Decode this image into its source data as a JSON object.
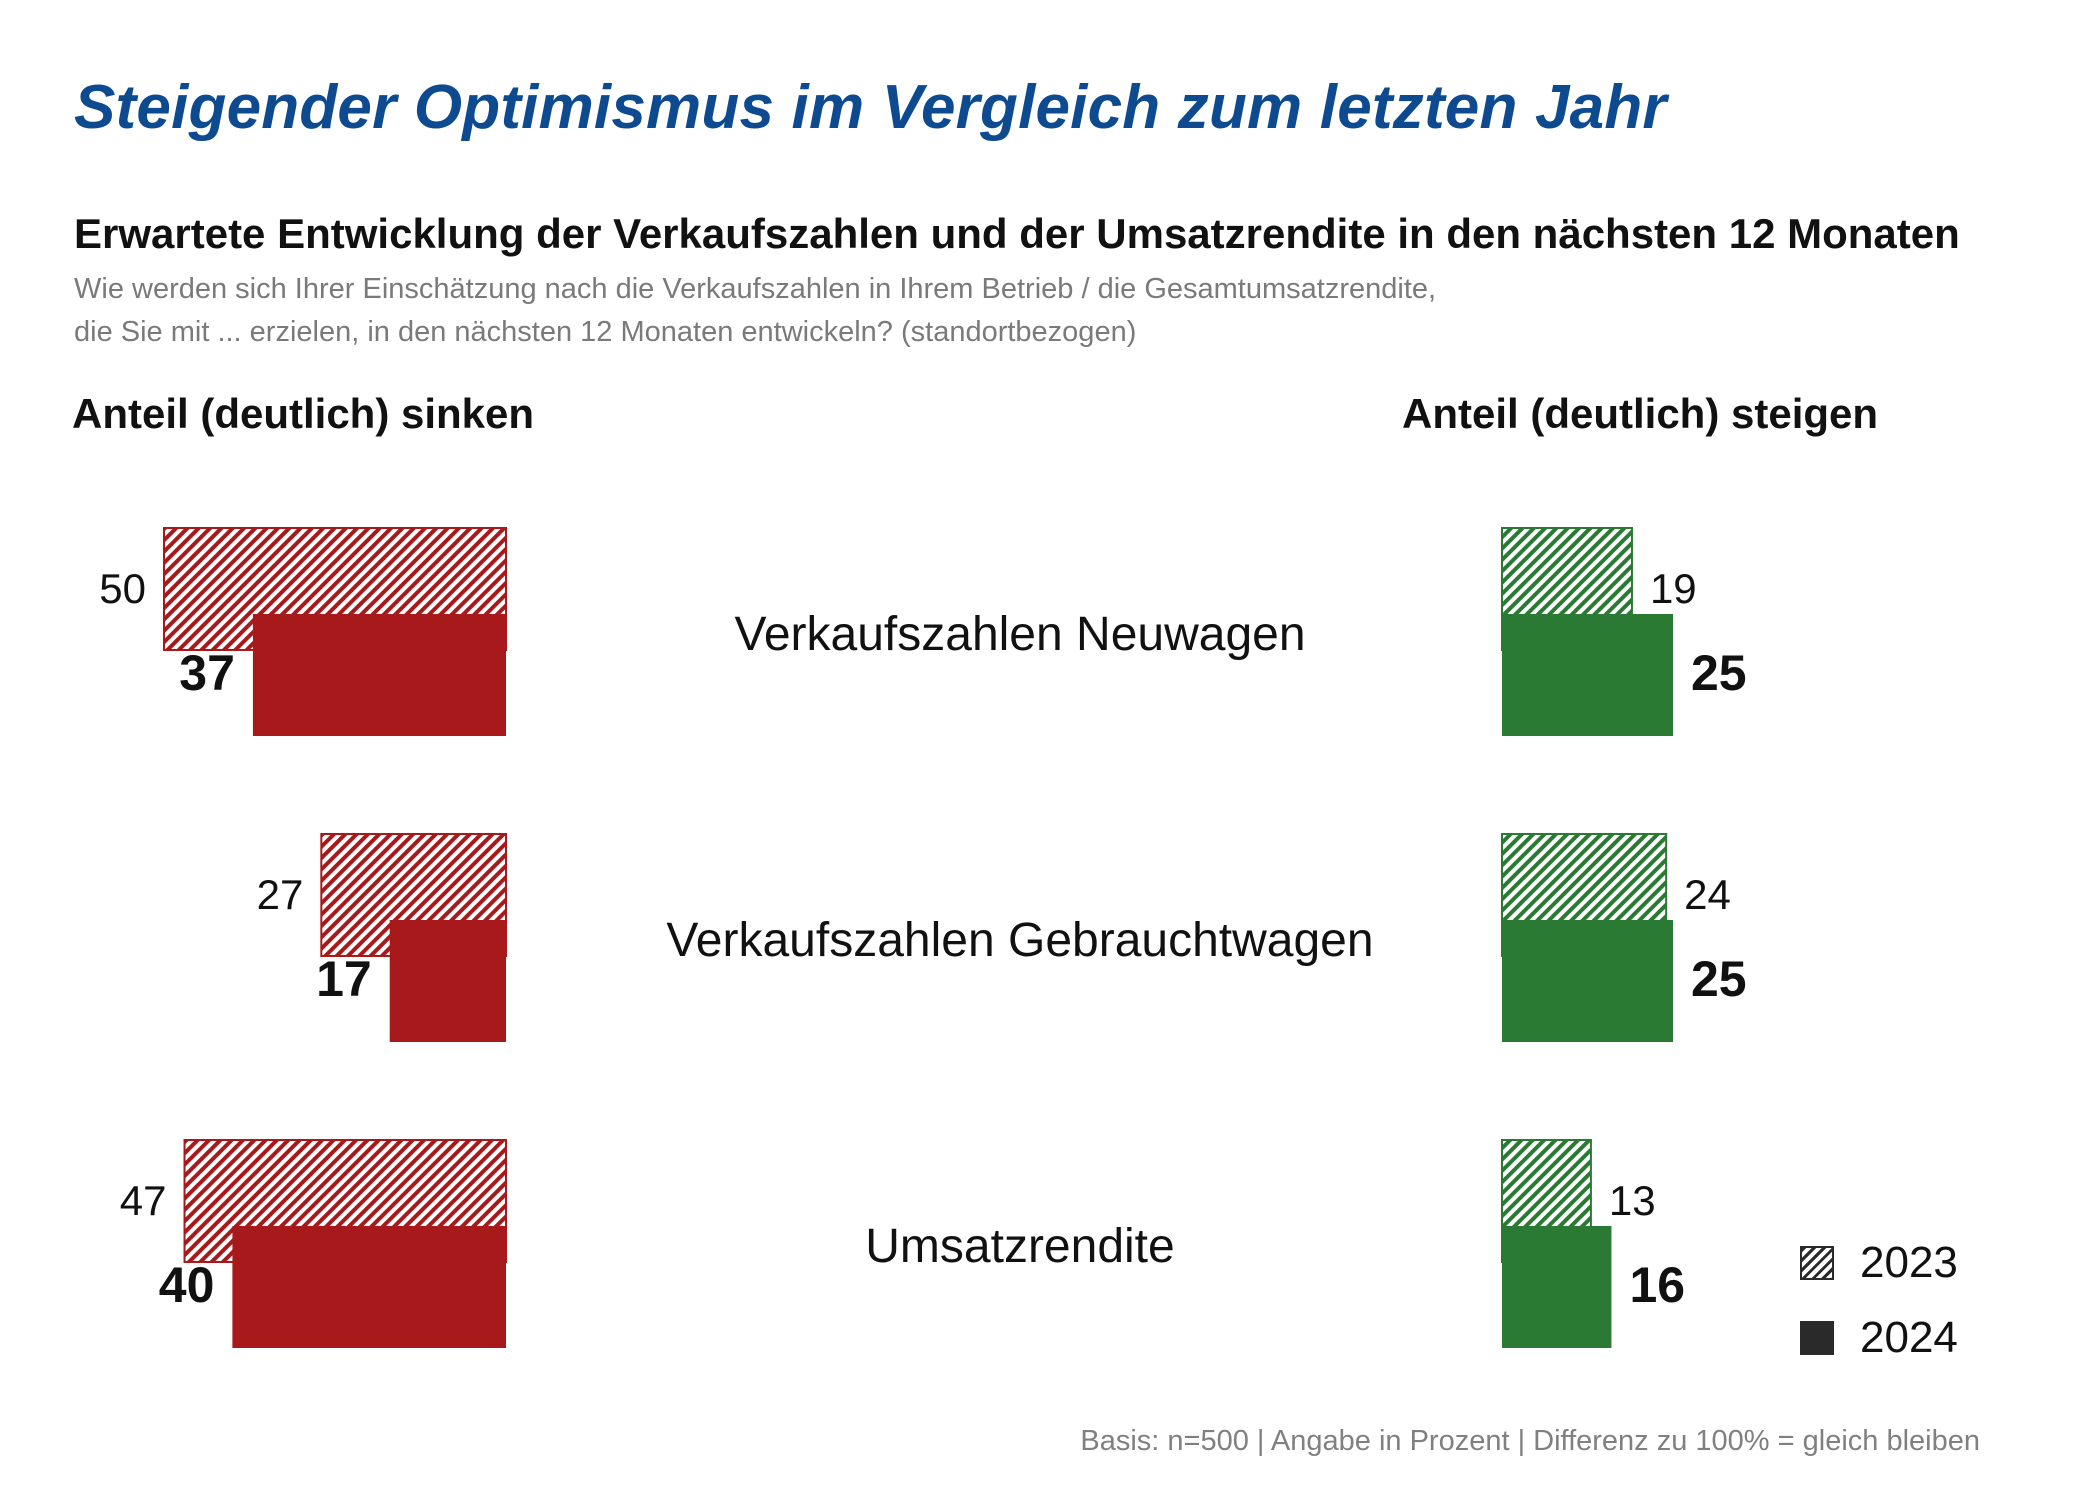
{
  "title": "Steigender Optimismus im Vergleich zum letzten Jahr",
  "subtitle": "Erwartete Entwicklung der Verkaufszahlen und der Umsatzrendite in den nächsten 12 Monaten",
  "question_line1": "Wie werden sich Ihrer Einschätzung nach die Verkaufszahlen in Ihrem Betrieb / die Gesamtumsatzrendite,",
  "question_line2": "die Sie mit ... erzielen, in den nächsten 12 Monaten entwickeln? (standortbezogen)",
  "left_header": "Anteil (deutlich) sinken",
  "right_header": "Anteil (deutlich) steigen",
  "footnote": "Basis: n=500 | Angabe in Prozent | Differenz zu 100% = gleich bleiben",
  "legend": {
    "items": [
      {
        "label": "2023",
        "style": "hatched"
      },
      {
        "label": "2024",
        "style": "solid"
      }
    ]
  },
  "colors": {
    "title": "#0d4a8f",
    "decline": "#a8191c",
    "increase": "#2a7a34",
    "text": "#111111",
    "muted": "#7a7a7a"
  },
  "chart_data": {
    "type": "bar",
    "orientation": "horizontal-diverging",
    "categories": [
      "Verkaufszahlen Neuwagen",
      "Verkaufszahlen Gebrauchtwagen",
      "Umsatzrendite"
    ],
    "unit": "Prozent",
    "groups": [
      {
        "name": "Anteil (deutlich) sinken",
        "series": [
          {
            "name": "2023",
            "style": "hatched",
            "values": [
              50,
              27,
              47
            ]
          },
          {
            "name": "2024",
            "style": "solid",
            "values": [
              37,
              17,
              40
            ]
          }
        ]
      },
      {
        "name": "Anteil (deutlich) steigen",
        "series": [
          {
            "name": "2023",
            "style": "hatched",
            "values": [
              19,
              24,
              13
            ]
          },
          {
            "name": "2024",
            "style": "solid",
            "values": [
              25,
              25,
              16
            ]
          }
        ]
      }
    ],
    "legend_position": "bottom-right"
  }
}
